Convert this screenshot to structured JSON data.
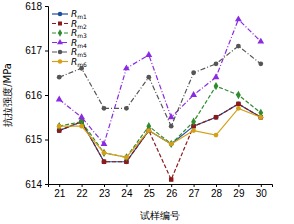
{
  "chart_data": {
    "type": "line",
    "x_label": "试样编号",
    "y_label": "抗拉强度/MPa",
    "x": [
      21,
      22,
      23,
      24,
      25,
      26,
      27,
      28,
      29,
      30
    ],
    "xlim": [
      20.5,
      30.5
    ],
    "xticks": [
      21,
      22,
      23,
      24,
      25,
      26,
      27,
      28,
      29,
      30
    ],
    "ylim": [
      614,
      618
    ],
    "yticks": [
      614,
      615,
      616,
      617,
      618
    ],
    "grid": false,
    "legend": "upper left",
    "series": [
      {
        "name": "Rm1",
        "color": "#1f4e9c",
        "marker": "circle",
        "line_style": "solid",
        "values": [
          615.2,
          615.4,
          614.5,
          614.5,
          615.2,
          614.9,
          615.3,
          615.5,
          615.8,
          615.5
        ]
      },
      {
        "name": "Rm2",
        "color": "#8b1a1a",
        "marker": "square",
        "line_style": "dashed",
        "values": [
          615.2,
          615.4,
          614.5,
          614.5,
          615.2,
          614.1,
          615.3,
          615.5,
          615.8,
          615.5
        ]
      },
      {
        "name": "Rm3",
        "color": "#2e8b2e",
        "marker": "diamond",
        "line_style": "dashed",
        "values": [
          615.3,
          615.4,
          614.7,
          614.6,
          615.3,
          614.9,
          615.4,
          616.2,
          616.0,
          615.6
        ]
      },
      {
        "name": "Rm4",
        "color": "#8a2be2",
        "marker": "triangle",
        "line_style": "dashdot",
        "values": [
          615.9,
          615.5,
          614.9,
          616.6,
          616.9,
          615.5,
          616.0,
          616.4,
          617.7,
          617.2
        ]
      },
      {
        "name": "Rm5",
        "color": "#555555",
        "marker": "circle",
        "line_style": "dashdot",
        "values": [
          616.4,
          616.6,
          615.7,
          615.7,
          616.4,
          615.3,
          616.5,
          616.7,
          617.1,
          616.7
        ]
      },
      {
        "name": "Rm6",
        "color": "#d4a017",
        "marker": "circle",
        "line_style": "solid",
        "values": [
          615.3,
          615.3,
          614.7,
          614.6,
          615.2,
          614.9,
          615.2,
          615.1,
          615.7,
          615.5
        ]
      }
    ]
  }
}
